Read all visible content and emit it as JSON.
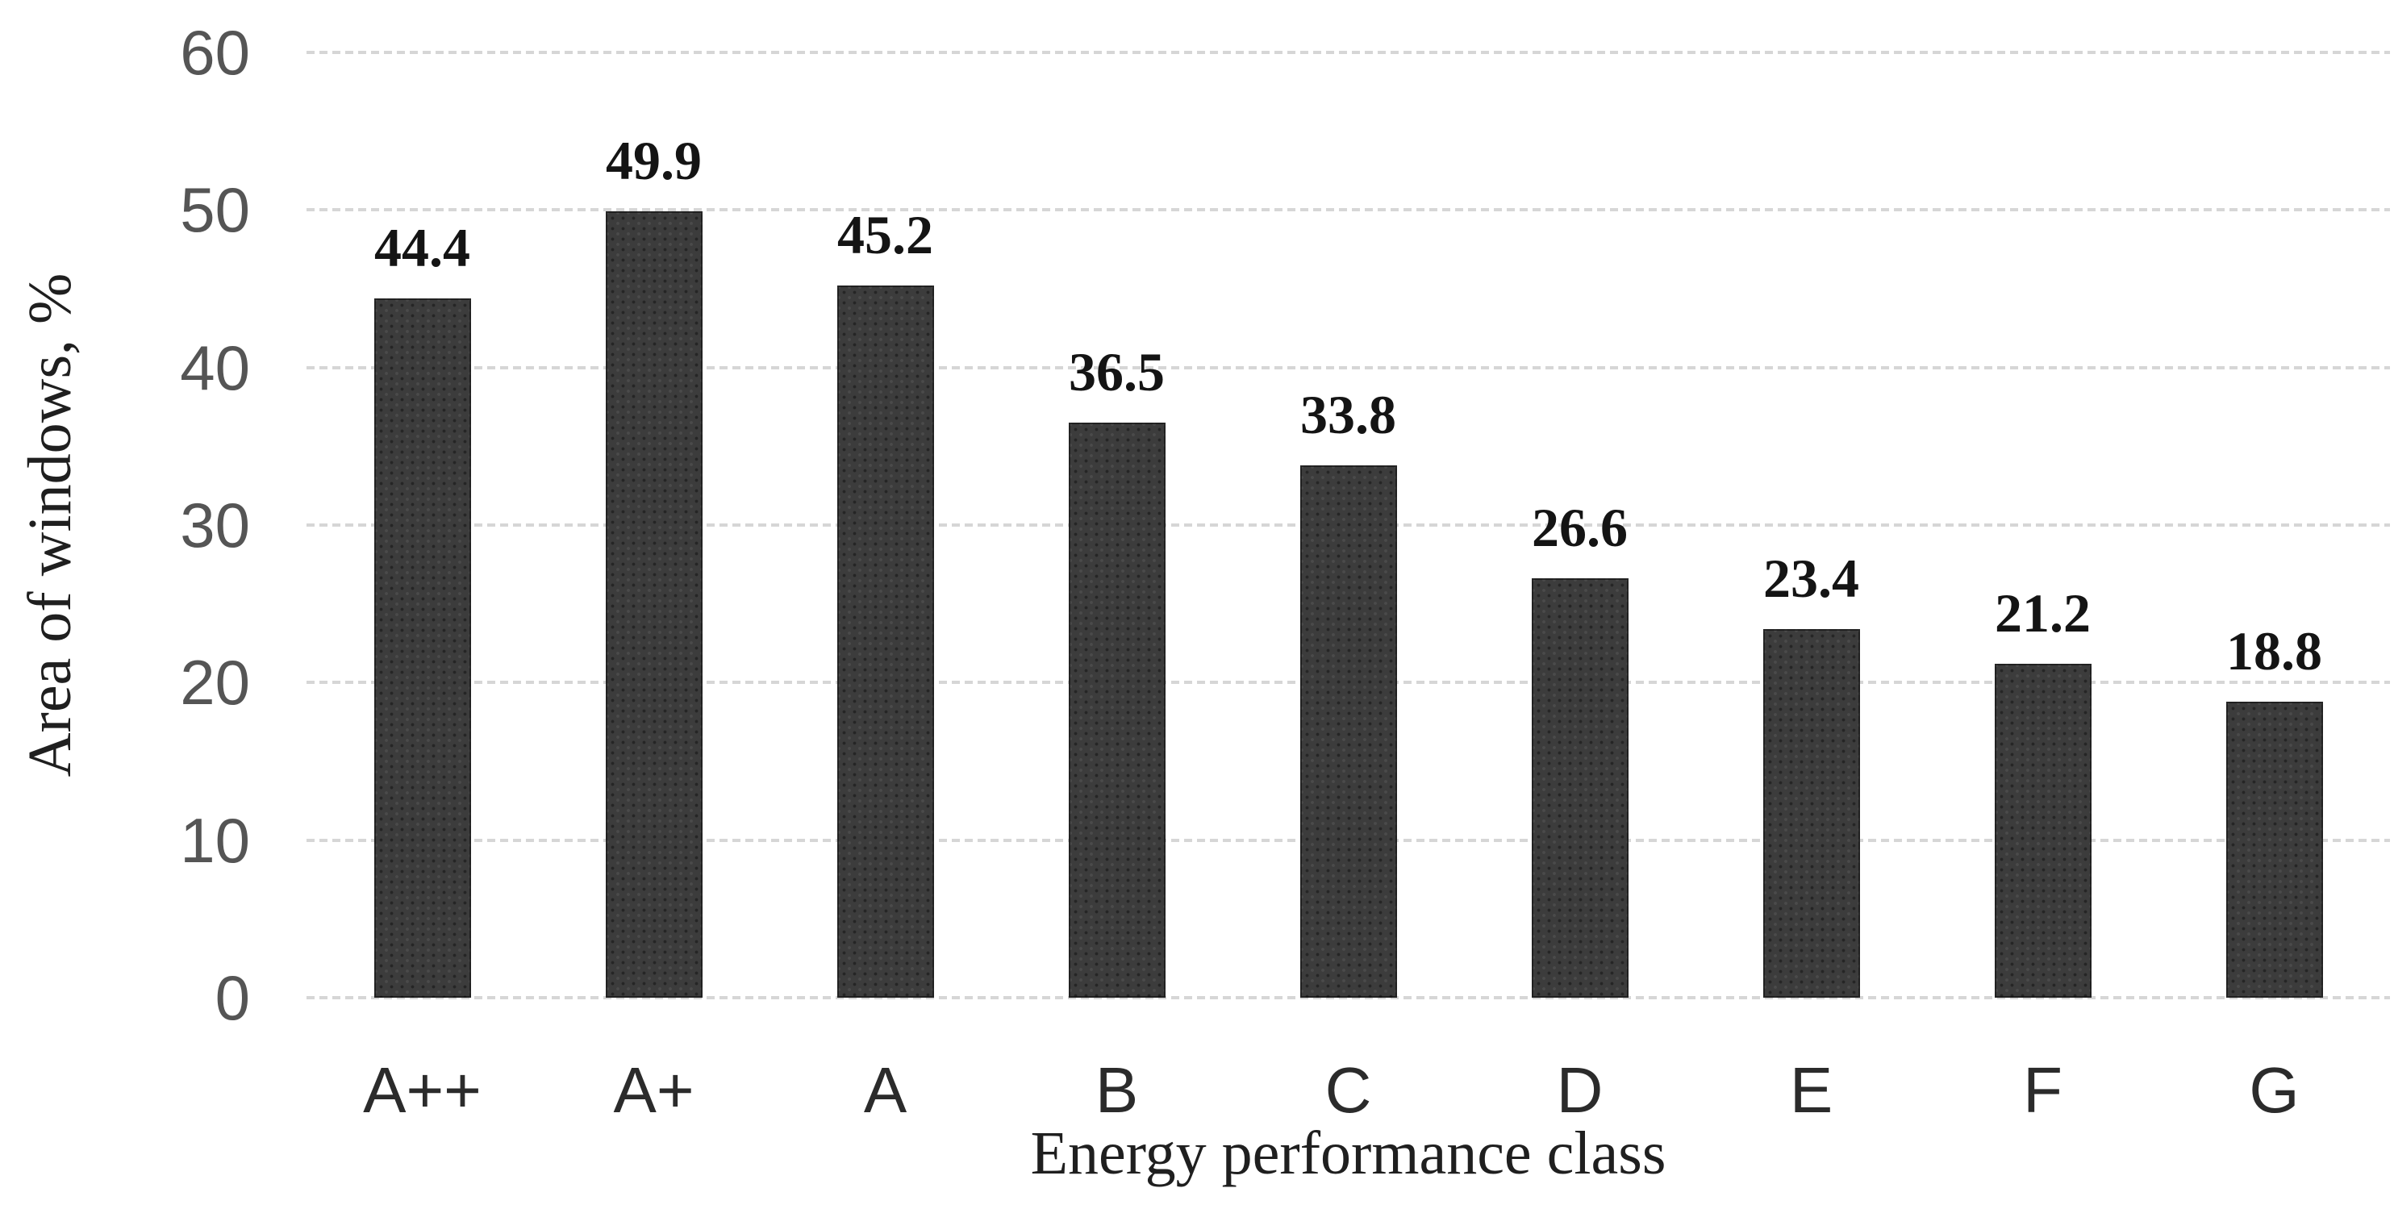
{
  "chart_data": {
    "type": "bar",
    "categories": [
      "A++",
      "A+",
      "A",
      "B",
      "C",
      "D",
      "E",
      "F",
      "G"
    ],
    "values": [
      44.4,
      49.9,
      45.2,
      36.5,
      33.8,
      26.6,
      23.4,
      21.2,
      18.8
    ],
    "value_labels": [
      "44.4",
      "49.9",
      "45.2",
      "36.5",
      "33.8",
      "26.6",
      "23.4",
      "21.2",
      "18.8"
    ],
    "title": "",
    "xlabel": "Energy performance class",
    "ylabel": "Area of windows, %",
    "yticks": [
      "0",
      "10",
      "20",
      "30",
      "40",
      "50",
      "60"
    ],
    "ylim": [
      0,
      60
    ],
    "grid": "horizontal-dotted",
    "legend_position": "none",
    "colors": {
      "background": "#ffffff",
      "bar_fill": "#3c3c3c",
      "gridline": "#d6d6d6",
      "y_tick_label": "#555555",
      "x_tick_label": "#2b2b2b",
      "value_label": "#141414",
      "axis_title": "#1f1f1f"
    }
  }
}
